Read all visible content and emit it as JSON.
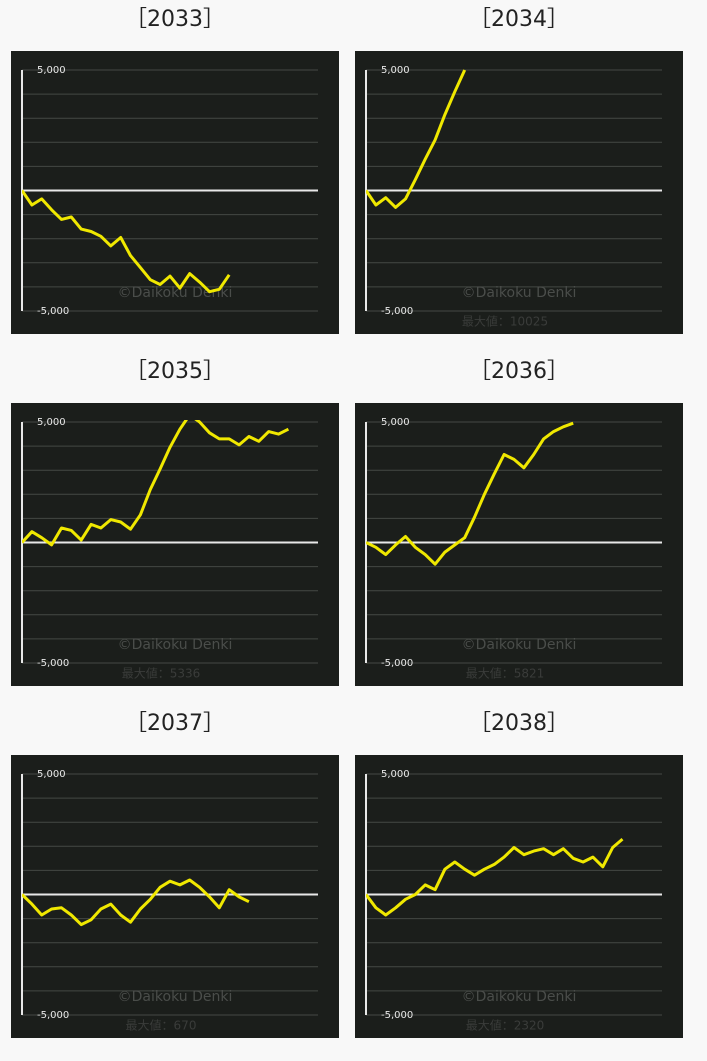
{
  "chart_data": [
    {
      "type": "line",
      "title": "［2033］",
      "color": "#f0e800",
      "watermark": "©Daikoku Denki",
      "ylim": [
        -5000,
        5000
      ],
      "xlim": [
        0,
        30
      ],
      "yticks": [
        {
          "value": 5000,
          "label": "5,000"
        },
        {
          "value": -5000,
          "label": "-5,000"
        }
      ],
      "ygrid": [
        -4000,
        -3000,
        -2000,
        -1000,
        0,
        1000,
        2000,
        3000,
        4000
      ],
      "values": [
        0,
        -600,
        -350,
        -800,
        -1200,
        -1100,
        -1600,
        -1700,
        -1900,
        -2300,
        -1950,
        -2700,
        -3200,
        -3700,
        -3900,
        -3550,
        -4050,
        -3450,
        -3800,
        -4200,
        -4100,
        -3500
      ]
    },
    {
      "type": "line",
      "title": "［2034］",
      "color": "#f0e800",
      "watermark": "©Daikoku Denki",
      "footer": "最大値：10025",
      "ylim": [
        -5000,
        5000
      ],
      "xlim": [
        0,
        30
      ],
      "yticks": [
        {
          "value": 5000,
          "label": "5,000"
        },
        {
          "value": -5000,
          "label": "-5,000"
        }
      ],
      "ygrid": [
        -4000,
        -3000,
        -2000,
        -1000,
        0,
        1000,
        2000,
        3000,
        4000
      ],
      "values": [
        0,
        -600,
        -300,
        -700,
        -350,
        450,
        1300,
        2100,
        3150,
        4100,
        5000
      ]
    },
    {
      "type": "line",
      "title": "［2035］",
      "color": "#f0e800",
      "watermark": "©Daikoku Denki",
      "footer": "最大値：5336",
      "ylim": [
        -5000,
        5000
      ],
      "xlim": [
        0,
        30
      ],
      "yticks": [
        {
          "value": 5000,
          "label": "5,000"
        },
        {
          "value": -5000,
          "label": "-5,000"
        }
      ],
      "ygrid": [
        -4000,
        -3000,
        -2000,
        -1000,
        0,
        1000,
        2000,
        3000,
        4000
      ],
      "values": [
        0,
        450,
        200,
        -100,
        600,
        500,
        100,
        750,
        600,
        950,
        850,
        550,
        1150,
        2200,
        3050,
        3950,
        4700,
        5300,
        5000,
        4550,
        4300,
        4300,
        4050,
        4400,
        4200,
        4600,
        4500,
        4700
      ]
    },
    {
      "type": "line",
      "title": "［2036］",
      "color": "#f0e800",
      "watermark": "©Daikoku Denki",
      "footer": "最大値：5821",
      "ylim": [
        -5000,
        5000
      ],
      "xlim": [
        0,
        30
      ],
      "yticks": [
        {
          "value": 5000,
          "label": "5,000"
        },
        {
          "value": -5000,
          "label": "-5,000"
        }
      ],
      "ygrid": [
        -4000,
        -3000,
        -2000,
        -1000,
        0,
        1000,
        2000,
        3000,
        4000
      ],
      "values": [
        0,
        -200,
        -500,
        -100,
        250,
        -200,
        -500,
        -900,
        -400,
        -100,
        200,
        1050,
        2000,
        2850,
        3650,
        3450,
        3100,
        3650,
        4300,
        4600,
        4800,
        4950
      ]
    },
    {
      "type": "line",
      "title": "［2037］",
      "color": "#f0e800",
      "watermark": "©Daikoku Denki",
      "footer": "最大値：670",
      "ylim": [
        -5000,
        5000
      ],
      "xlim": [
        0,
        30
      ],
      "yticks": [
        {
          "value": 5000,
          "label": "5,000"
        },
        {
          "value": -5000,
          "label": "-5,000"
        }
      ],
      "ygrid": [
        -4000,
        -3000,
        -2000,
        -1000,
        0,
        1000,
        2000,
        3000,
        4000
      ],
      "values": [
        0,
        -400,
        -850,
        -600,
        -550,
        -850,
        -1250,
        -1050,
        -600,
        -400,
        -850,
        -1150,
        -600,
        -200,
        300,
        550,
        400,
        600,
        300,
        -100,
        -550,
        200,
        -100,
        -300
      ]
    },
    {
      "type": "line",
      "title": "［2038］",
      "color": "#f0e800",
      "watermark": "©Daikoku Denki",
      "footer": "最大値：2320",
      "ylim": [
        -5000,
        5000
      ],
      "xlim": [
        0,
        30
      ],
      "yticks": [
        {
          "value": 5000,
          "label": "5,000"
        },
        {
          "value": -5000,
          "label": "-5,000"
        }
      ],
      "ygrid": [
        -4000,
        -3000,
        -2000,
        -1000,
        0,
        1000,
        2000,
        3000,
        4000
      ],
      "values": [
        0,
        -550,
        -850,
        -550,
        -200,
        0,
        400,
        200,
        1050,
        1350,
        1050,
        800,
        1050,
        1250,
        1550,
        1950,
        1650,
        1800,
        1900,
        1650,
        1900,
        1500,
        1350,
        1550,
        1150,
        1950,
        2300
      ]
    }
  ]
}
